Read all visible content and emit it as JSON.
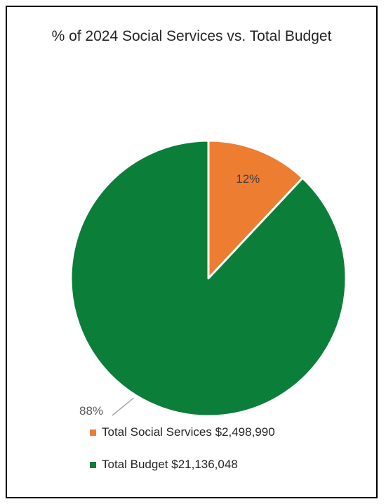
{
  "chart_data": {
    "type": "pie",
    "title": "% of 2024 Social Services vs. Total Budget",
    "slices": [
      {
        "label": "Total Social Services $2,498,990",
        "value": 12,
        "data_label": "12%",
        "color": "#ED7D31"
      },
      {
        "label": "Total Budget $21,136,048",
        "value": 88,
        "data_label": "88%",
        "color": "#0B7E3A"
      }
    ],
    "legend_position": "bottom"
  }
}
